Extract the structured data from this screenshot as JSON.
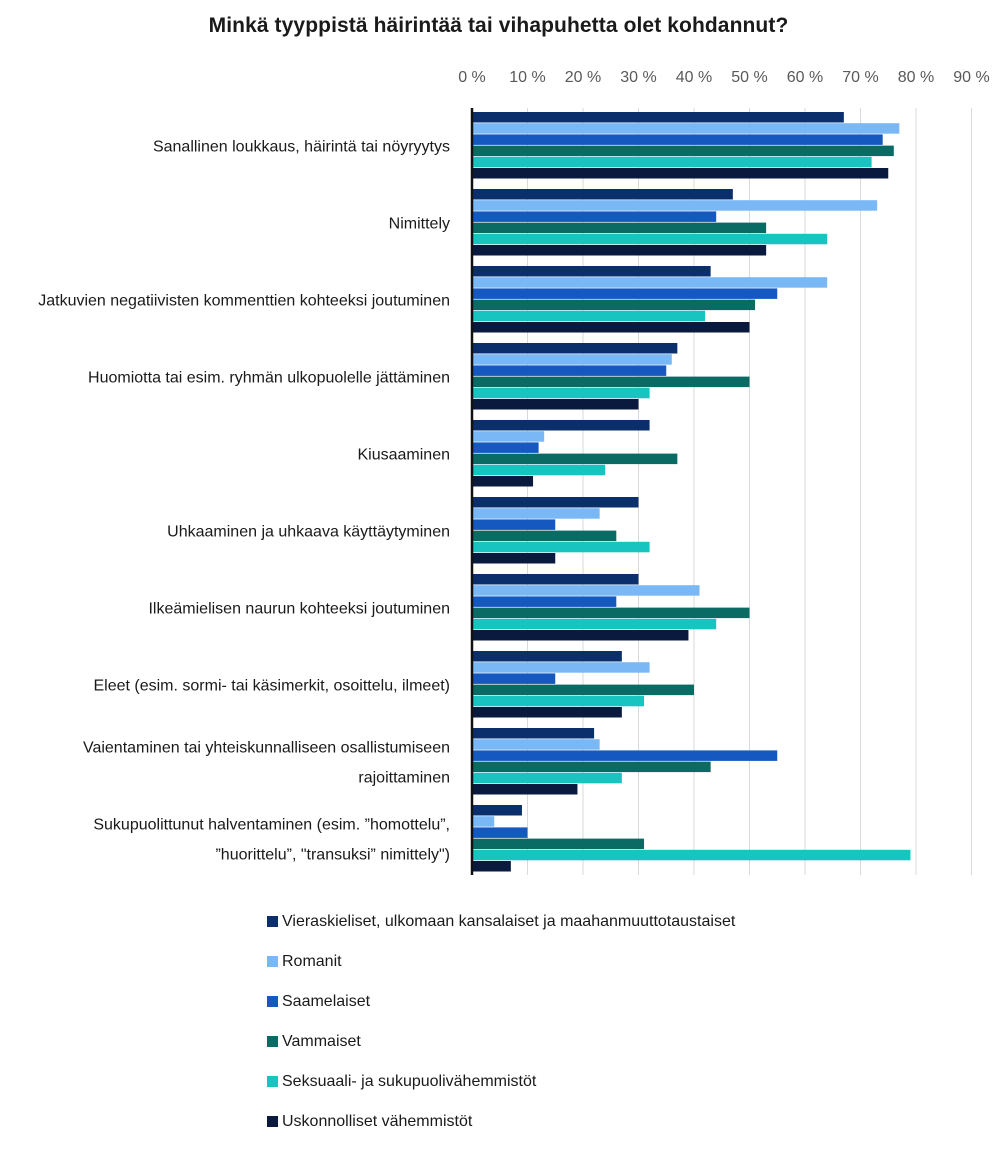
{
  "chart_data": {
    "type": "bar",
    "orientation": "horizontal",
    "title": "Minkä tyyppistä häirintää tai vihapuhetta olet kohdannut?",
    "x_ticks": [
      "0 %",
      "10 %",
      "20 %",
      "30 %",
      "40 %",
      "50 %",
      "60 %",
      "70 %",
      "80 %",
      "90 %"
    ],
    "xlim": [
      0,
      90
    ],
    "grid": true,
    "legend_position": "bottom",
    "categories": [
      [
        "Sanallinen loukkaus, häirintä tai nöyryytys"
      ],
      [
        "Nimittely"
      ],
      [
        "Jatkuvien negatiivisten kommenttien kohteeksi joutuminen"
      ],
      [
        "Huomiotta tai esim. ryhmän ulkopuolelle jättäminen"
      ],
      [
        "Kiusaaminen"
      ],
      [
        "Uhkaaminen ja uhkaava käyttäytyminen"
      ],
      [
        "Ilkeämielisen naurun kohteeksi joutuminen"
      ],
      [
        "Eleet (esim. sormi- tai käsimerkit, osoittelu, ilmeet)"
      ],
      [
        "Vaientaminen tai yhteiskunnalliseen osallistumiseen",
        "rajoittaminen"
      ],
      [
        "Sukupuolittunut halventaminen (esim. ”homottelu”,",
        "”huorittelu”, \"transuksi” nimittely\")"
      ]
    ],
    "series": [
      {
        "name": "Vieraskieliset, ulkomaan kansalaiset ja maahanmuuttotaustaiset",
        "color": "#0b2f6b",
        "values": [
          67,
          47,
          43,
          37,
          32,
          30,
          30,
          27,
          22,
          9
        ]
      },
      {
        "name": "Romanit",
        "color": "#7ab8f5",
        "values": [
          77,
          73,
          64,
          36,
          13,
          23,
          41,
          32,
          23,
          4
        ]
      },
      {
        "name": "Saamelaiset",
        "color": "#1558c0",
        "values": [
          74,
          44,
          55,
          35,
          12,
          15,
          26,
          15,
          55,
          10
        ]
      },
      {
        "name": "Vammaiset",
        "color": "#0a6b64",
        "values": [
          76,
          53,
          51,
          50,
          37,
          26,
          50,
          40,
          43,
          31
        ]
      },
      {
        "name": "Seksuaali- ja sukupuolivähemmistöt",
        "color": "#17c4c0",
        "values": [
          72,
          64,
          42,
          32,
          24,
          32,
          44,
          31,
          27,
          79
        ]
      },
      {
        "name": "Uskonnolliset vähemmistöt",
        "color": "#0a1a3e",
        "values": [
          75,
          53,
          50,
          30,
          11,
          15,
          39,
          27,
          19,
          7
        ]
      }
    ]
  }
}
